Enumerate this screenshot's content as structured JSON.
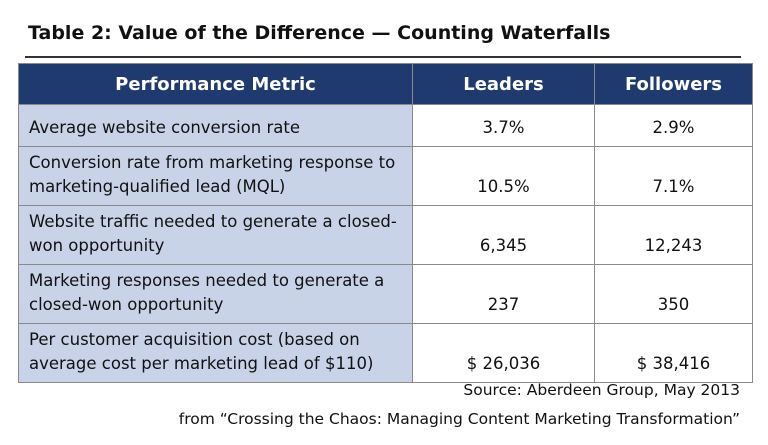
{
  "title": "Table 2: Value of the Difference — Counting Waterfalls",
  "table": {
    "header": [
      "Performance Metric",
      "Leaders",
      "Followers"
    ],
    "rows": [
      [
        "Average website conversion rate",
        "3.7%",
        "2.9%"
      ],
      [
        "Conversion rate from marketing response to marketing-qualified lead (MQL)",
        "10.5%",
        "7.1%"
      ],
      [
        "Website traffic needed to generate a closed-won opportunity",
        "6,345",
        "12,243"
      ],
      [
        "Marketing responses needed to generate a closed-won opportunity",
        "237",
        "350"
      ],
      [
        "Per customer acquisition cost (based on average cost per marketing lead of $110)",
        "$ 26,036",
        "$ 38,416"
      ]
    ]
  },
  "source": "Source: Aberdeen Group, May 2013",
  "from": "from “Crossing the Chaos: Managing Content Marketing Transformation”"
}
